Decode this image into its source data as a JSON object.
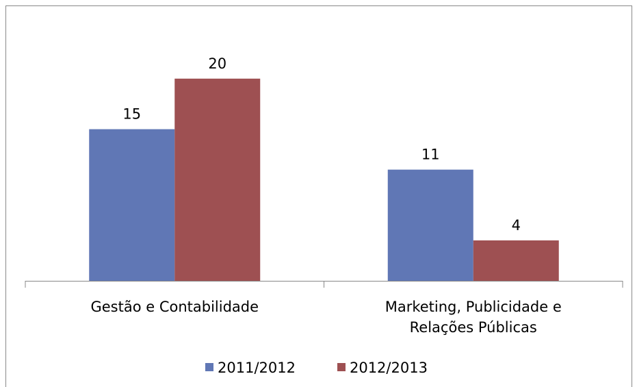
{
  "chart_data": {
    "type": "bar",
    "categories": [
      "Gestão e Contabilidade",
      "Marketing, Publicidade e Relações Públicas"
    ],
    "series": [
      {
        "name": "2011/2012",
        "color": "#6077b5",
        "values": [
          15,
          11
        ]
      },
      {
        "name": "2012/2013",
        "color": "#9e5052",
        "values": [
          20,
          4
        ]
      }
    ],
    "ylim": [
      0,
      25
    ],
    "legend": "bottom"
  }
}
